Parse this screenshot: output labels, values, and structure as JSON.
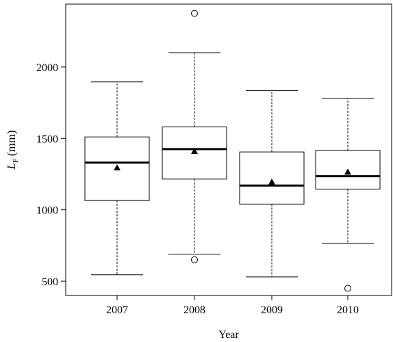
{
  "chart_data": {
    "type": "box",
    "title": "",
    "xlabel": "Year",
    "ylabel": {
      "symbol": "L",
      "subscript": "F",
      "unit": "(mm)"
    },
    "ylim": [
      400,
      2440
    ],
    "yticks": [
      500,
      1000,
      1500,
      2000
    ],
    "grid": false,
    "legend": "none",
    "categories": [
      "2007",
      "2008",
      "2009",
      "2010"
    ],
    "boxes": [
      {
        "category": "2007",
        "whisker_low": 545,
        "q1": 1065,
        "median": 1330,
        "q3": 1510,
        "whisker_high": 1895,
        "mean": 1295,
        "outliers": []
      },
      {
        "category": "2008",
        "whisker_low": 690,
        "q1": 1215,
        "median": 1425,
        "q3": 1580,
        "whisker_high": 2100,
        "mean": 1410,
        "outliers": [
          2375,
          650
        ]
      },
      {
        "category": "2009",
        "whisker_low": 530,
        "q1": 1040,
        "median": 1170,
        "q3": 1405,
        "whisker_high": 1835,
        "mean": 1195,
        "outliers": []
      },
      {
        "category": "2010",
        "whisker_low": 765,
        "q1": 1145,
        "median": 1235,
        "q3": 1415,
        "whisker_high": 1780,
        "mean": 1265,
        "outliers": [
          450
        ]
      }
    ]
  }
}
